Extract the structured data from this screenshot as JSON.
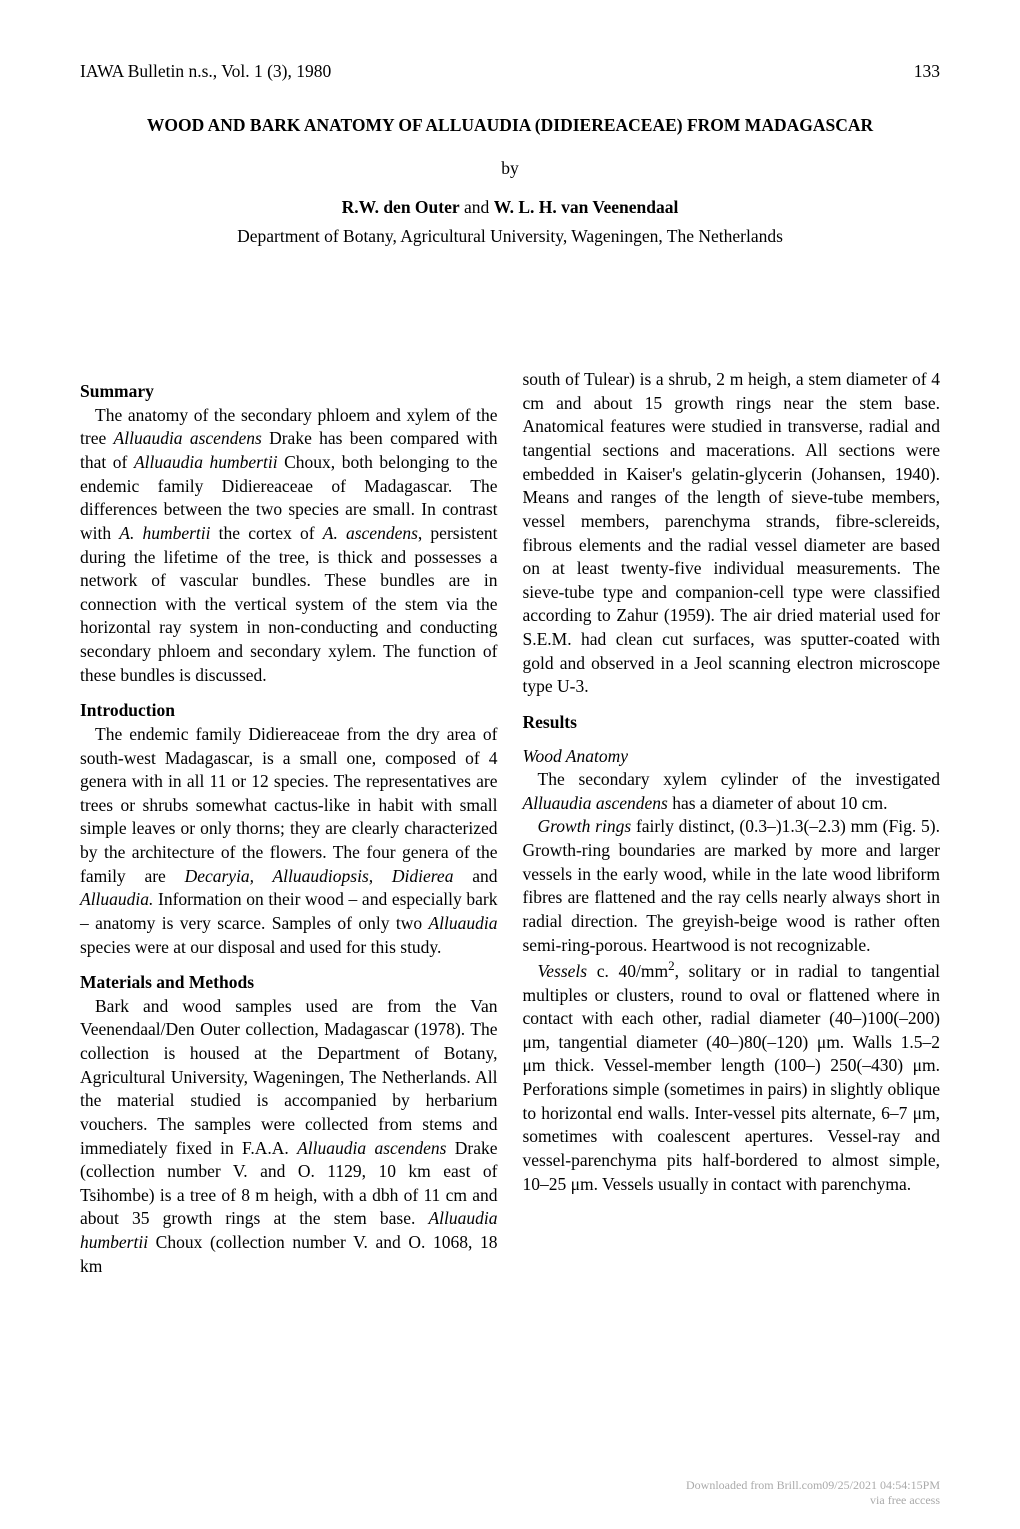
{
  "header": {
    "journal": "IAWA Bulletin n.s., Vol. 1 (3), 1980",
    "page": "133"
  },
  "title": "WOOD AND BARK ANATOMY OF ALLUAUDIA (DIDIEREACEAE) FROM MADAGASCAR",
  "by": "by",
  "authors_line1_a": "R.W. den Outer",
  "authors_line1_and": " and ",
  "authors_line1_b": "W. L. H. van Veenendaal",
  "affiliation": "Department of Botany, Agricultural University, Wageningen, The Netherlands",
  "sections": {
    "summary_heading": "Summary",
    "summary_p1_a": "The anatomy of the secondary phloem and xylem of the tree ",
    "summary_p1_b": "Alluaudia ascendens",
    "summary_p1_c": " Drake has been compared with that of ",
    "summary_p1_d": "Alluaudia humbertii",
    "summary_p1_e": " Choux, both belonging to the endemic family Didiereaceae of Madagascar. The differences between the two species are small. In contrast with ",
    "summary_p1_f": "A. humbertii",
    "summary_p1_g": " the cortex of ",
    "summary_p1_h": "A. ascendens",
    "summary_p1_i": ", persistent during the lifetime of the tree, is thick and possesses a network of vascular bundles. These bundles are in connection with the vertical system of the stem via the horizontal ray system in non-conducting and conducting secondary phloem and secondary xylem. The function of these bundles is discussed.",
    "intro_heading": "Introduction",
    "intro_p1_a": "The endemic family Didiereaceae from the dry area of south-west Madagascar, is a small one, composed of 4 genera with in all 11 or 12 species. The representatives are trees or shrubs somewhat cactus-like in habit with small simple leaves or only thorns; they are clearly characterized by the architecture of the flowers. The four genera of the family are ",
    "intro_p1_b": "Decaryia, Alluaudiopsis, Didierea",
    "intro_p1_c": " and ",
    "intro_p1_d": "Alluaudia.",
    "intro_p1_e": " Information on their wood – and especially bark – anatomy is very scarce. Samples of only two ",
    "intro_p1_f": "Alluaudia",
    "intro_p1_g": " species were at our disposal and used for this study.",
    "methods_heading": "Materials and Methods",
    "methods_p1_a": "Bark and wood samples used are from the Van Veenendaal/Den Outer collection, Madagascar (1978). The collection is housed at the Department of Botany, Agricultural University, Wageningen, The Netherlands. All the material studied is accompanied by herbarium vouchers. The samples were collected from stems and immediately fixed in F.A.A. ",
    "methods_p1_b": "Alluaudia ascendens",
    "methods_p1_c": " Drake (collection number V. and O. 1129, 10 km east of Tsihombe) is a tree of 8 m heigh, with a dbh of 11 cm and about 35 growth rings at the stem base. ",
    "methods_p1_d": "Alluaudia humbertii",
    "methods_p1_e": " Choux (collection number V. and O. 1068, 18 km",
    "col2_p1": "south of Tulear) is a shrub, 2 m heigh, a stem diameter of 4 cm and about 15 growth rings near the stem base. Anatomical features were studied in transverse, radial and tangential sections and macerations. All sections were embedded in Kaiser's gelatin-glycerin (Johansen, 1940). Means and ranges of the length of sieve-tube members, vessel members, parenchyma strands, fibre-sclereids, fibrous elements and the radial vessel diameter are based on at least twenty-five individual measurements. The sieve-tube type and companion-cell type were classified according to Zahur (1959). The air dried material used for S.E.M. had clean cut surfaces, was sputter-coated with gold and observed in a Jeol scanning electron microscope type U-3.",
    "results_heading": "Results",
    "wood_heading": "Wood Anatomy",
    "wood_p1_a": "The secondary xylem cylinder of the investigated ",
    "wood_p1_b": "Alluaudia ascendens",
    "wood_p1_c": " has a diameter of about 10 cm.",
    "wood_p2_a": "Growth rings",
    "wood_p2_b": " fairly distinct, (0.3–)1.3(–2.3) mm (Fig. 5). Growth-ring boundaries are marked by more and larger vessels in the early wood, while in the late wood libriform fibres are flattened and the ray cells nearly always short in radial direction. The greyish-beige wood is rather often semi-ring-porous. Heartwood is not recognizable.",
    "wood_p3_a": "Vessels",
    "wood_p3_b": " c. 40/mm",
    "wood_p3_sup": "2",
    "wood_p3_c": ", solitary or in radial to tangential multiples or clusters, round to oval or flattened where in contact with each other, radial diameter (40–)100(–200) μm, tangential diameter (40–)80(–120) μm. Walls 1.5–2 μm thick. Vessel-member length (100–) 250(–430) μm. Perforations simple (sometimes in pairs) in slightly oblique to horizontal end walls. Inter-vessel pits alternate, 6–7 μm, sometimes with coalescent apertures. Vessel-ray and vessel-parenchyma pits half-bordered to almost simple, 10–25 μm. Vessels usually in contact with parenchyma."
  },
  "footer": {
    "line1": "Downloaded from Brill.com09/25/2021 04:54:15PM",
    "line2": "via free access"
  }
}
